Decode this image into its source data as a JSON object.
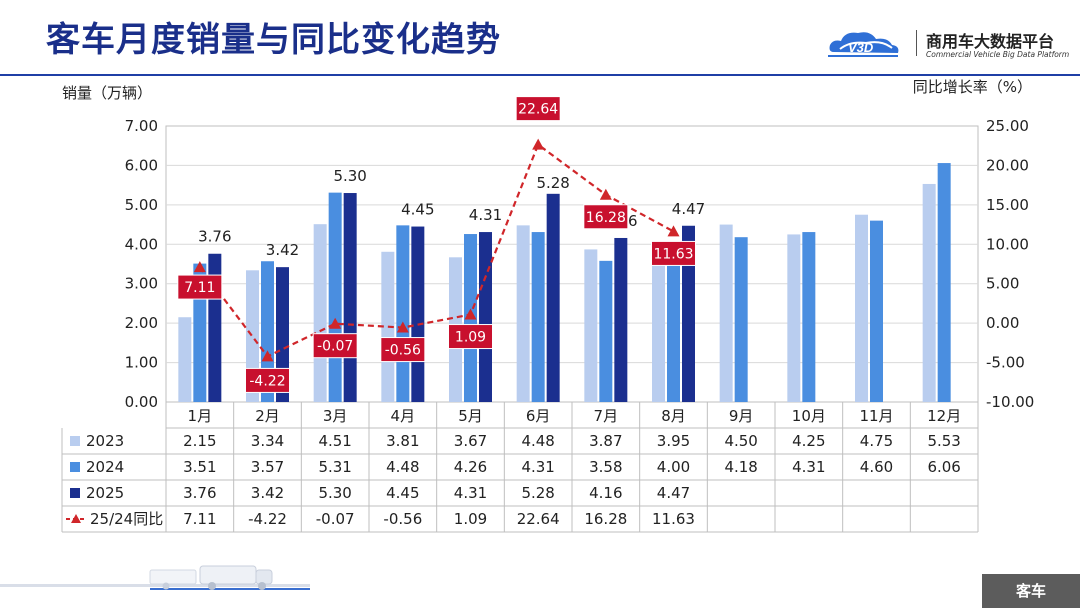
{
  "page": {
    "title": "客车月度销量与同比变化趋势",
    "logo_name": "商用车大数据平台",
    "logo_sub": "Commercial Vehicle Big Data Platform",
    "bottom_tag": "客车"
  },
  "chart_data": {
    "type": "bar",
    "ylabel": "销量（万辆）",
    "y2label": "同比增长率（%）",
    "ylim": [
      0,
      7
    ],
    "y2lim": [
      -10,
      25
    ],
    "yticks": [
      "0.00",
      "1.00",
      "2.00",
      "3.00",
      "4.00",
      "5.00",
      "6.00",
      "7.00"
    ],
    "y2ticks": [
      "-10.00",
      "-5.00",
      "0.00",
      "5.00",
      "10.00",
      "15.00",
      "20.00",
      "25.00"
    ],
    "categories": [
      "1月",
      "2月",
      "3月",
      "4月",
      "5月",
      "6月",
      "7月",
      "8月",
      "9月",
      "10月",
      "11月",
      "12月"
    ],
    "series": [
      {
        "name": "2023",
        "color": "#b9cdef",
        "values": [
          2.15,
          3.34,
          4.51,
          3.81,
          3.67,
          4.48,
          3.87,
          3.95,
          4.5,
          4.25,
          4.75,
          5.53
        ],
        "labels": [
          "2.15",
          "3.34",
          "4.51",
          "3.81",
          "3.67",
          "4.48",
          "3.87",
          "3.95",
          "4.50",
          "4.25",
          "4.75",
          "5.53"
        ]
      },
      {
        "name": "2024",
        "color": "#4a8ee0",
        "values": [
          3.51,
          3.57,
          5.31,
          4.48,
          4.26,
          4.31,
          3.58,
          4.0,
          4.18,
          4.31,
          4.6,
          6.06
        ],
        "labels": [
          "3.51",
          "3.57",
          "5.31",
          "4.48",
          "4.26",
          "4.31",
          "3.58",
          "4.00",
          "4.18",
          "4.31",
          "4.60",
          "6.06"
        ]
      },
      {
        "name": "2025",
        "color": "#1b2f8f",
        "values": [
          3.76,
          3.42,
          5.3,
          4.45,
          4.31,
          5.28,
          4.16,
          4.47,
          null,
          null,
          null,
          null
        ],
        "labels": [
          "3.76",
          "3.42",
          "5.30",
          "4.45",
          "4.31",
          "5.28",
          "4.16",
          "4.47",
          "",
          "",
          "",
          ""
        ]
      }
    ],
    "line": {
      "name": "25/24同比",
      "color": "#d0262a",
      "axis": "right",
      "values": [
        7.11,
        -4.22,
        -0.07,
        -0.56,
        1.09,
        22.64,
        16.28,
        11.63,
        null,
        null,
        null,
        null
      ],
      "labels": [
        "7.11",
        "-4.22",
        "-0.07",
        "-0.56",
        "1.09",
        "22.64",
        "16.28",
        "11.63",
        "",
        "",
        "",
        ""
      ]
    }
  }
}
